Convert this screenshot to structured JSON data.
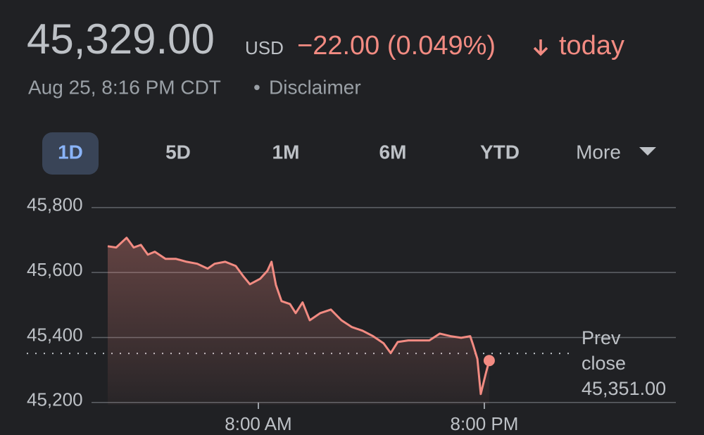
{
  "chart_data": {
    "type": "line",
    "price": "45,329.00",
    "currency": "USD",
    "change": "−22.00 (0.049%)",
    "change_period": "today",
    "timestamp": "Aug 25, 8:16 PM CDT",
    "disclaimer": "Disclaimer",
    "ranges": [
      "1D",
      "5D",
      "1M",
      "6M",
      "YTD",
      "More"
    ],
    "selected_range": "1D",
    "x": [
      0.0,
      0.45,
      1.0,
      1.38,
      1.76,
      2.13,
      2.5,
      3.07,
      3.63,
      4.19,
      4.75,
      5.31,
      5.68,
      6.24,
      6.8,
      7.18,
      7.55,
      8.1,
      8.48,
      8.7,
      8.93,
      9.23,
      9.68,
      9.98,
      10.35,
      10.73,
      11.29,
      11.85,
      12.41,
      12.97,
      13.53,
      14.09,
      14.65,
      15.03,
      15.4,
      15.96,
      16.52,
      17.08,
      17.64,
      18.21,
      18.77,
      19.25,
      19.4,
      19.63,
      19.81,
      20.07,
      20.26
    ],
    "series": [
      {
        "color": "#f28b82",
        "values": [
          45681,
          45677,
          45707,
          45677,
          45685,
          45655,
          45664,
          45642,
          45642,
          45633,
          45627,
          45612,
          45627,
          45633,
          45620,
          45590,
          45564,
          45581,
          45605,
          45633,
          45562,
          45512,
          45503,
          45475,
          45508,
          45453,
          45475,
          45486,
          45453,
          45432,
          45421,
          45404,
          45382,
          45352,
          45386,
          45391,
          45391,
          45391,
          45412,
          45404,
          45399,
          45404,
          45378,
          45334,
          45226,
          45287,
          45329
        ]
      }
    ],
    "xlim": [
      -0.86,
      30.17
    ],
    "xticks": [
      {
        "value": 8,
        "label": "8:00 AM"
      },
      {
        "value": 20,
        "label": "8:00 PM"
      }
    ],
    "ylim": [
      45193,
      45830
    ],
    "yticks": [
      {
        "value": 45200,
        "label": "45,200"
      },
      {
        "value": 45400,
        "label": "45,400"
      },
      {
        "value": 45600,
        "label": "45,600"
      },
      {
        "value": 45800,
        "label": "45,800"
      }
    ],
    "reference_line": {
      "name": "Prev close",
      "value": 45351,
      "label": "45,351.00"
    },
    "grid": true
  }
}
